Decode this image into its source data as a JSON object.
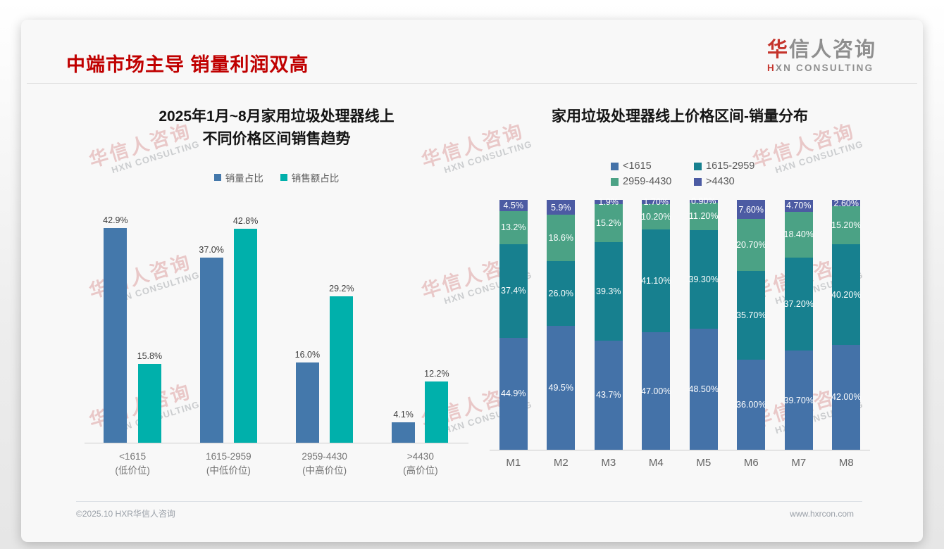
{
  "page": {
    "title": "中端市场主导 销量利润双高",
    "footer_left": "©2025.10 HXR华信人咨询",
    "footer_right": "www.hxrcon.com"
  },
  "logo": {
    "cn_accent": "华",
    "cn_rest": "信人咨询",
    "en_accent": "H",
    "en_rest": "XN CONSULTING"
  },
  "watermark": {
    "cn": "华信人咨询",
    "en": "HXN CONSULTING"
  },
  "colors": {
    "title_red": "#c00000",
    "left_blue": "#4478ab",
    "left_teal": "#00b0ab",
    "stack_blue": "#4472a8",
    "stack_teal": "#17808f",
    "stack_green": "#4ba285",
    "stack_purple": "#4c5ba3"
  },
  "chart_data": [
    {
      "type": "bar",
      "stacked": false,
      "title": "2025年1月~8月家用垃圾处理器线上\n不同价格区间销售趋势",
      "categories": [
        "<1615\n(低价位)",
        "1615-2959\n(中低价位)",
        "2959-4430\n(中高价位)",
        ">4430\n(高价位)"
      ],
      "series": [
        {
          "name": "销量占比",
          "color": "#4478ab",
          "values": [
            42.9,
            37.0,
            16.0,
            4.1
          ],
          "labels": [
            "42.9%",
            "37.0%",
            "16.0%",
            "4.1%"
          ]
        },
        {
          "name": "销售额占比",
          "color": "#00b0ab",
          "values": [
            15.8,
            42.8,
            29.2,
            12.2
          ],
          "labels": [
            "15.8%",
            "42.8%",
            "29.2%",
            "12.2%"
          ]
        }
      ],
      "xlabel": "",
      "ylabel": "",
      "ylim": [
        0,
        45
      ],
      "grid": false,
      "legend_position": "top",
      "value_labels": true
    },
    {
      "type": "bar",
      "stacked": true,
      "title": "家用垃圾处理器线上价格区间-销量分布",
      "categories": [
        "M1",
        "M2",
        "M3",
        "M4",
        "M5",
        "M6",
        "M7",
        "M8"
      ],
      "series": [
        {
          "name": "<1615",
          "color": "#4472a8",
          "values": [
            44.9,
            49.5,
            43.7,
            47.0,
            48.5,
            36.0,
            39.7,
            42.0
          ],
          "labels": [
            "44.9%",
            "49.5%",
            "43.7%",
            "47.00%",
            "48.50%",
            "36.00%",
            "39.70%",
            "42.00%"
          ]
        },
        {
          "name": "1615-2959",
          "color": "#17808f",
          "values": [
            37.4,
            26.0,
            39.3,
            41.1,
            39.3,
            35.7,
            37.2,
            40.2
          ],
          "labels": [
            "37.4%",
            "26.0%",
            "39.3%",
            "41.10%",
            "39.30%",
            "35.70%",
            "37.20%",
            "40.20%"
          ]
        },
        {
          "name": "2959-4430",
          "color": "#4ba285",
          "values": [
            13.2,
            18.6,
            15.2,
            10.2,
            11.2,
            20.7,
            18.4,
            15.2
          ],
          "labels": [
            "13.2%",
            "18.6%",
            "15.2%",
            "10.20%",
            "11.20%",
            "20.70%",
            "18.40%",
            "15.20%"
          ]
        },
        {
          "name": ">4430",
          "color": "#4c5ba3",
          "values": [
            4.5,
            5.9,
            1.9,
            1.7,
            0.9,
            7.6,
            4.7,
            2.6
          ],
          "labels": [
            "4.5%",
            "5.9%",
            "1.9%",
            "1.70%",
            "0.90%",
            "7.60%",
            "4.70%",
            "2.60%"
          ]
        }
      ],
      "xlabel": "",
      "ylabel": "",
      "ylim": [
        0,
        100
      ],
      "grid": false,
      "legend_position": "top",
      "value_labels": true
    }
  ]
}
